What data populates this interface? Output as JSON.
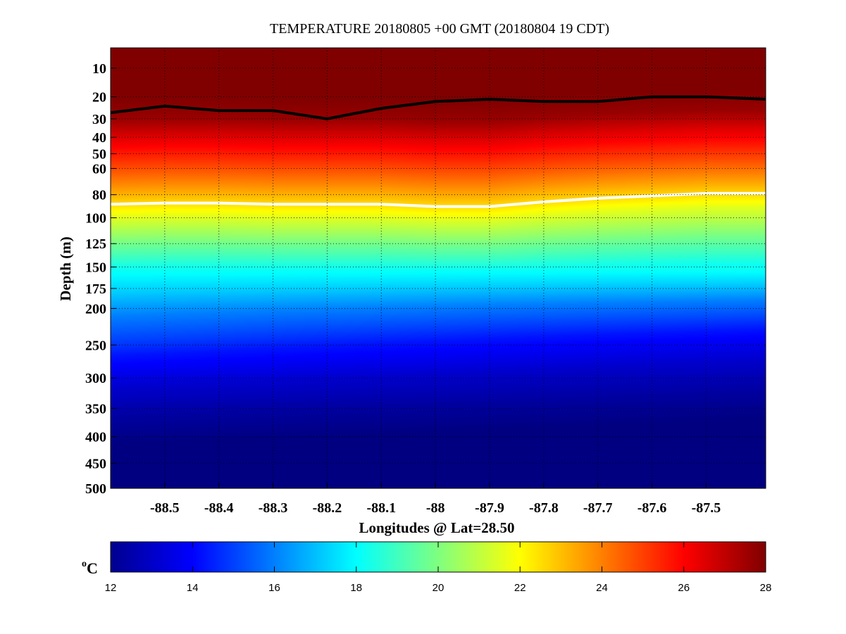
{
  "chart_data": [
    {
      "type": "heatmap",
      "title": "TEMPERATURE 20180805 +00 GMT (20180804 19 CDT)",
      "xlabel": "Longitudes @ Lat=28.50",
      "ylabel": "Depth (m)",
      "xlim": [
        -88.6,
        -87.39
      ],
      "ylim": [
        500,
        5
      ],
      "x_ticks": [
        -88.5,
        -88.4,
        -88.3,
        -88.2,
        -88.1,
        -88,
        -87.9,
        -87.8,
        -87.7,
        -87.6,
        -87.5
      ],
      "x_tick_labels": [
        "-88.5",
        "-88.4",
        "-88.3",
        "-88.2",
        "-88.1",
        "-88",
        "-87.9",
        "-87.8",
        "-87.7",
        "-87.6",
        "-87.5"
      ],
      "y_ticks": [
        10,
        20,
        30,
        40,
        50,
        60,
        80,
        100,
        125,
        150,
        175,
        200,
        250,
        300,
        350,
        400,
        450,
        500
      ],
      "y_tick_labels": [
        "10",
        "20",
        "30",
        "40",
        "50",
        "60",
        "80",
        "100",
        "125",
        "150",
        "175",
        "200",
        "250",
        "300",
        "350",
        "400",
        "450",
        "500"
      ],
      "grid": true,
      "colormap": "jet",
      "color_range": [
        12,
        28
      ],
      "colorbar": {
        "ticks": [
          12,
          14,
          16,
          18,
          20,
          22,
          24,
          26,
          28
        ],
        "tick_labels": [
          "12",
          "14",
          "16",
          "18",
          "20",
          "22",
          "24",
          "26",
          "28"
        ],
        "unit_sup": "o",
        "unit": "C"
      },
      "temperature_profile": {
        "depth": [
          5,
          20,
          30,
          40,
          50,
          60,
          80,
          100,
          125,
          150,
          175,
          200,
          250,
          300,
          350,
          400,
          450,
          500
        ],
        "temperature": [
          28,
          28,
          27.6,
          26.5,
          25.6,
          24.8,
          23.2,
          21.5,
          19.8,
          18.3,
          17.2,
          16.0,
          14.3,
          13.2,
          12.5,
          12.0,
          12.0,
          12.0
        ]
      },
      "isotherm_black_depth": {
        "x": [
          -88.6,
          -88.5,
          -88.4,
          -88.3,
          -88.2,
          -88.1,
          -88,
          -87.9,
          -87.8,
          -87.7,
          -87.6,
          -87.5,
          -87.39
        ],
        "y": [
          27,
          24,
          26,
          26,
          30,
          25,
          22,
          21,
          22,
          22,
          20,
          20,
          21
        ]
      },
      "isotherm_white_depth": {
        "x": [
          -88.6,
          -88.5,
          -88.4,
          -88.3,
          -88.2,
          -88.1,
          -88,
          -87.9,
          -87.8,
          -87.7,
          -87.6,
          -87.5,
          -87.39
        ],
        "y": [
          88,
          87,
          87,
          88,
          88,
          88,
          90,
          90,
          86,
          83,
          81,
          79,
          79
        ]
      }
    }
  ]
}
